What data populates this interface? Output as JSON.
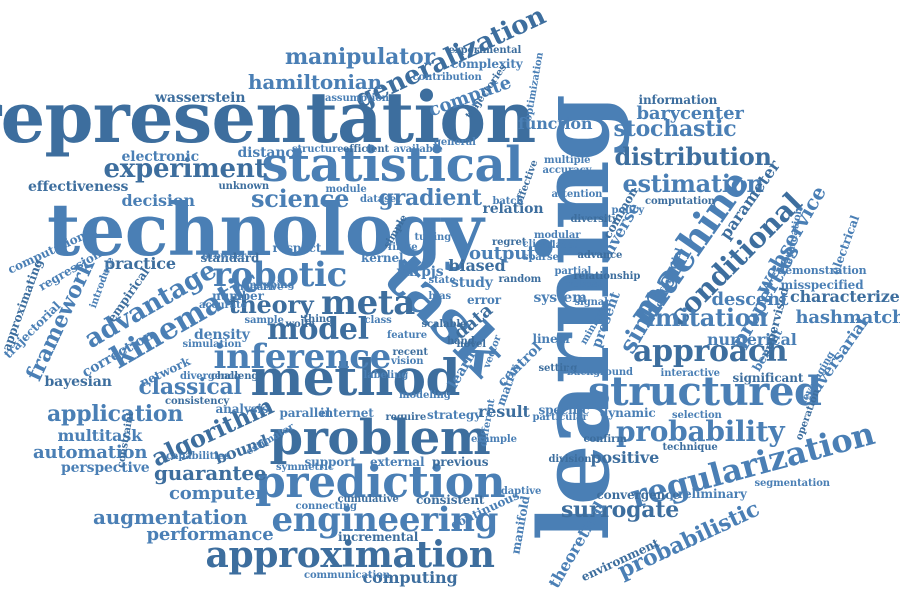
{
  "palette": {
    "primary": "#4a7fb5",
    "dark": "#3d6e9e"
  },
  "words": [
    "representation",
    "technology",
    "learning",
    "method",
    "task",
    "statistical",
    "problem",
    "prediction",
    "engineering",
    "approximation",
    "machine",
    "structured",
    "approach",
    "regularization",
    "probability",
    "model",
    "inference",
    "robotic",
    "meta",
    "kinematic",
    "advantage",
    "distribution",
    "estimation",
    "stochastic",
    "conditional",
    "sinkhorn",
    "imitation",
    "algorithm",
    "application",
    "classical",
    "generalization",
    "manipulator",
    "hamiltonian",
    "experiment",
    "science",
    "gradient",
    "theory",
    "framework",
    "probabilistic",
    "surrogate",
    "augmentation",
    "automation",
    "guarantee",
    "computer",
    "performance",
    "computing",
    "function",
    "barycenter",
    "information",
    "webservice",
    "properties",
    "parameter",
    "inverse",
    "hashmatch",
    "characterize",
    "numerical",
    "adversarial",
    "significant",
    "misspecified",
    "demonstration",
    "positive",
    "dynamic",
    "specific",
    "result",
    "strategy",
    "internet",
    "bayesian",
    "multitask",
    "perspective",
    "bound",
    "density",
    "correction",
    "practice",
    "regression",
    "computational",
    "approximating",
    "trajectorial",
    "decision",
    "effectiveness",
    "electronic",
    "distance",
    "wasserstein",
    "compute",
    "complexity",
    "experimental",
    "contribution",
    "assumption",
    "trajectories",
    "optimization",
    "structure",
    "efficient",
    "available",
    "respect",
    "standard",
    "kernel",
    "yarpjs",
    "biased",
    "output",
    "study",
    "relation",
    "system",
    "linear",
    "setting",
    "number",
    "sample",
    "thing",
    "class",
    "vision",
    "novel",
    "learn",
    "control",
    "consistent",
    "continuous",
    "adaptive",
    "incremental",
    "connecting",
    "communication",
    "previous",
    "external",
    "support",
    "require",
    "parallel",
    "analysis",
    "consistency",
    "network",
    "divergence",
    "challenge",
    "capabilities",
    "estimator",
    "convergence",
    "preliminary",
    "segmentation",
    "environment",
    "theoretical",
    "manifold",
    "technique",
    "selection",
    "benefit",
    "supervised",
    "leveraging",
    "electrical",
    "confirm",
    "descent",
    "present",
    "common",
    "multiple",
    "accuracy",
    "effective",
    "module",
    "dataset",
    "unknown",
    "browser",
    "introduce",
    "empirical",
    "particular",
    "symmetric",
    "cumulative",
    "matrix",
    "vector",
    "data",
    "error",
    "bias",
    "hand",
    "state",
    "mapping",
    "computation",
    "evaluation",
    "differential",
    "relationship",
    "minimize",
    "interactive",
    "operation",
    "background",
    "different",
    "division",
    "negative",
    "accurate",
    "constraint",
    "simulation",
    "labeling",
    "wolfe",
    "modeling",
    "general",
    "recent",
    "batch",
    "policy",
    "diversity",
    "modular",
    "tuning",
    "regret",
    "client",
    "related",
    "simple",
    "example",
    "attention",
    "advance",
    "finite",
    "sparse",
    "random",
    "partial",
    "robust",
    "scalable",
    "feature",
    "signal",
    "heuristic",
    "graph"
  ]
}
